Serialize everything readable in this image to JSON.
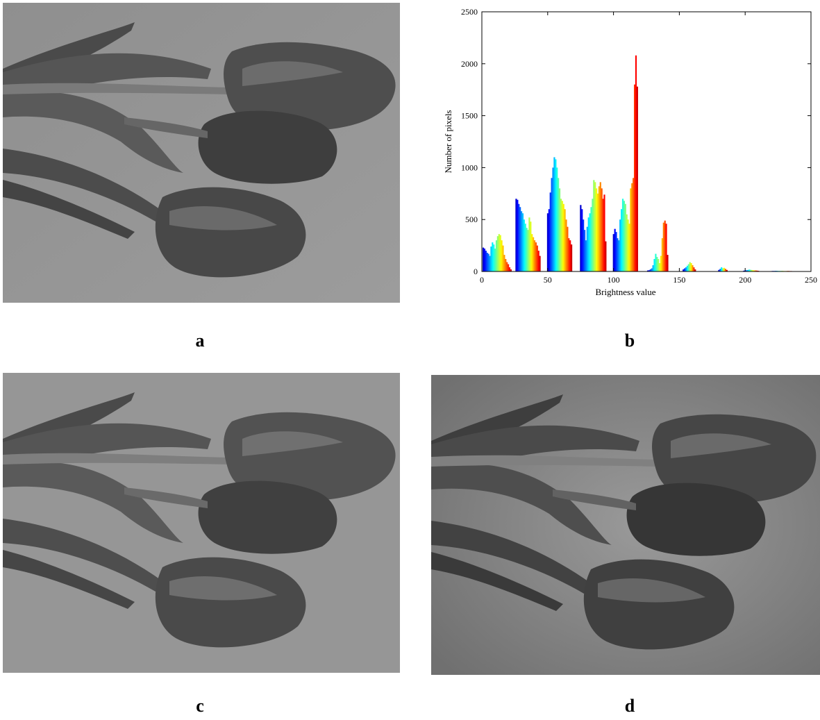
{
  "panels": {
    "a": {
      "label": "a"
    },
    "b": {
      "label": "b"
    },
    "c": {
      "label": "c"
    },
    "d": {
      "label": "d"
    }
  },
  "chart_data": {
    "type": "bar",
    "xlabel": "Brightness value",
    "ylabel": "Number of pixels",
    "xlim": [
      0,
      250
    ],
    "ylim": [
      0,
      2500
    ],
    "xticks": [
      0,
      50,
      100,
      150,
      200,
      250
    ],
    "yticks": [
      0,
      500,
      1000,
      1500,
      2000,
      2500
    ],
    "grid": false,
    "colormap": "jet",
    "groups": [
      {
        "x": [
          1,
          2,
          3,
          4,
          5,
          6,
          7,
          8,
          9,
          10,
          11,
          12,
          13,
          14,
          15,
          16,
          17,
          18,
          19,
          20,
          21,
          22
        ],
        "values": [
          230,
          220,
          200,
          180,
          170,
          150,
          240,
          280,
          260,
          220,
          300,
          340,
          360,
          350,
          300,
          250,
          160,
          120,
          90,
          70,
          40,
          20
        ]
      },
      {
        "x": [
          26,
          27,
          28,
          29,
          30,
          31,
          32,
          33,
          34,
          35,
          36,
          37,
          38,
          39,
          40,
          41,
          42,
          43,
          44
        ],
        "values": [
          700,
          690,
          650,
          620,
          580,
          560,
          500,
          460,
          420,
          400,
          520,
          480,
          360,
          330,
          300,
          280,
          250,
          200,
          150
        ]
      },
      {
        "x": [
          50,
          51,
          52,
          53,
          54,
          55,
          56,
          57,
          58,
          59,
          60,
          61,
          62,
          63,
          64,
          65,
          66,
          67,
          68
        ],
        "values": [
          560,
          600,
          760,
          900,
          1000,
          1100,
          1080,
          1000,
          900,
          800,
          700,
          680,
          650,
          600,
          500,
          430,
          320,
          300,
          260
        ]
      },
      {
        "x": [
          75,
          76,
          77,
          78,
          79,
          80,
          81,
          82,
          83,
          84,
          85,
          86,
          87,
          88,
          89,
          90,
          91,
          92,
          93,
          94
        ],
        "values": [
          640,
          600,
          500,
          400,
          300,
          430,
          520,
          560,
          620,
          700,
          880,
          860,
          800,
          750,
          820,
          860,
          800,
          700,
          740,
          290
        ]
      },
      {
        "x": [
          100,
          101,
          102,
          103,
          104,
          105,
          106,
          107,
          108,
          109,
          110,
          111,
          112,
          113,
          114,
          115,
          116,
          117,
          118
        ],
        "values": [
          360,
          410,
          380,
          320,
          300,
          500,
          600,
          700,
          680,
          650,
          550,
          500,
          460,
          800,
          850,
          900,
          1800,
          2080,
          1780
        ]
      },
      {
        "x": [
          126,
          127,
          128,
          129,
          130,
          131,
          132,
          133,
          134,
          135,
          136,
          137,
          138,
          139,
          140,
          141
        ],
        "values": [
          10,
          12,
          20,
          30,
          60,
          120,
          170,
          140,
          120,
          80,
          150,
          320,
          470,
          490,
          460,
          160
        ]
      },
      {
        "x": [
          153,
          154,
          155,
          156,
          157,
          158,
          159,
          160,
          161,
          162
        ],
        "values": [
          20,
          30,
          40,
          55,
          70,
          90,
          80,
          60,
          40,
          20
        ]
      },
      {
        "x": [
          180,
          181,
          182,
          183,
          184,
          185,
          186
        ],
        "values": [
          15,
          25,
          40,
          30,
          35,
          25,
          15
        ]
      },
      {
        "x": [
          199,
          200,
          201,
          202,
          203,
          204,
          205,
          206,
          207,
          208,
          209,
          210
        ],
        "values": [
          8,
          10,
          12,
          14,
          18,
          16,
          14,
          12,
          10,
          10,
          8,
          6
        ]
      },
      {
        "x": [
          220,
          221,
          222,
          223,
          224,
          225,
          226,
          227,
          228,
          229,
          230,
          231,
          232,
          233,
          234,
          235
        ],
        "values": [
          4,
          5,
          5,
          6,
          6,
          5,
          5,
          5,
          6,
          5,
          4,
          4,
          5,
          5,
          4,
          4
        ]
      }
    ]
  }
}
